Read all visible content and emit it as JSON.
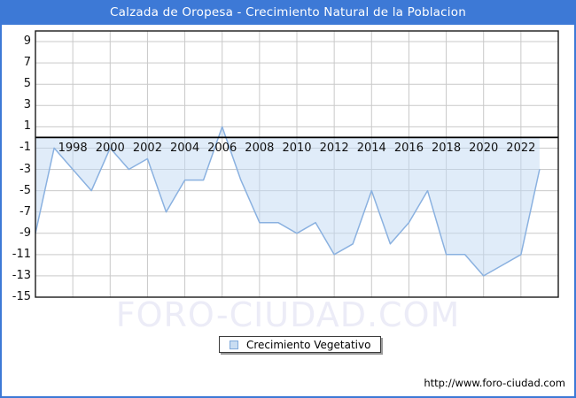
{
  "window": {
    "title": "Calzada de Oropesa - Crecimiento Natural de la Poblacion",
    "titlebar_color": "#3D79D6"
  },
  "watermark": "FORO-CIUDAD.COM",
  "legend": {
    "label": "Crecimiento Vegetativo"
  },
  "footer": {
    "url": "http://www.foro-ciudad.com"
  },
  "chart_data": {
    "type": "area",
    "title": "Calzada de Oropesa - Crecimiento Natural de la Poblacion",
    "series_name": "Crecimiento Vegetativo",
    "x": [
      1996,
      1997,
      1998,
      1999,
      2000,
      2001,
      2002,
      2003,
      2004,
      2005,
      2006,
      2007,
      2008,
      2009,
      2010,
      2011,
      2012,
      2013,
      2014,
      2015,
      2016,
      2017,
      2018,
      2019,
      2020,
      2021,
      2022,
      2023
    ],
    "values": [
      -9,
      -1,
      -3,
      -5,
      -1,
      -3,
      -2,
      -7,
      -4,
      -4,
      1,
      -4,
      -8,
      -8,
      -9,
      -8,
      -11,
      -10,
      -5,
      -10,
      -8,
      -5,
      -11,
      -11,
      -13,
      -12,
      -11,
      -3
    ],
    "xlim": [
      1996,
      2024
    ],
    "ylim": [
      -15,
      10
    ],
    "x_ticks": [
      1998,
      2000,
      2002,
      2004,
      2006,
      2008,
      2010,
      2012,
      2014,
      2016,
      2018,
      2020,
      2022
    ],
    "y_ticks": [
      9,
      7,
      5,
      3,
      1,
      -1,
      -3,
      -5,
      -7,
      -9,
      -11,
      -13,
      -15
    ],
    "grid": true,
    "legend_position": "bottom-center",
    "colors": {
      "line": "#8AB1E0",
      "fill": "rgba(193,217,243,0.5)",
      "grid": "#C9C9C9",
      "zero_line": "#000000",
      "border": "#1a1a1a"
    }
  }
}
